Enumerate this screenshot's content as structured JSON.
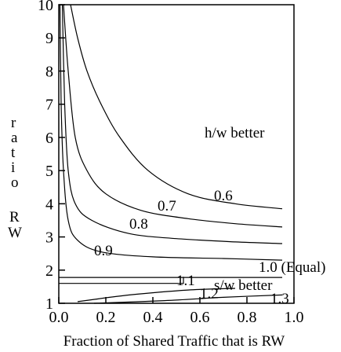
{
  "chart_data": {
    "type": "line",
    "title": "",
    "xlabel": "Fraction of Shared Traffic that is RW",
    "ylabel": "ratio RW",
    "xlim": [
      0.0,
      1.0
    ],
    "ylim": [
      1,
      10
    ],
    "xticks": [
      "0.0",
      "0.2",
      "0.4",
      "0.6",
      "0.8",
      "1.0"
    ],
    "yticks": [
      "1",
      "2",
      "3",
      "4",
      "5",
      "6",
      "7",
      "8",
      "9",
      "10"
    ],
    "grid": false,
    "series": [
      {
        "label": "0.6",
        "values": [
          [
            0.05,
            10
          ],
          [
            0.08,
            9.0
          ],
          [
            0.12,
            8.0
          ],
          [
            0.18,
            7.0
          ],
          [
            0.26,
            6.0
          ],
          [
            0.38,
            5.0
          ],
          [
            0.55,
            4.3
          ],
          [
            0.75,
            4.0
          ],
          [
            0.95,
            3.85
          ]
        ]
      },
      {
        "label": "0.7",
        "values": [
          [
            0.02,
            10
          ],
          [
            0.04,
            8.0
          ],
          [
            0.07,
            6.0
          ],
          [
            0.12,
            5.0
          ],
          [
            0.2,
            4.3
          ],
          [
            0.35,
            3.8
          ],
          [
            0.55,
            3.55
          ],
          [
            0.75,
            3.4
          ],
          [
            0.95,
            3.3
          ]
        ]
      },
      {
        "label": "0.8",
        "values": [
          [
            0.015,
            10
          ],
          [
            0.025,
            7.0
          ],
          [
            0.04,
            5.0
          ],
          [
            0.07,
            4.0
          ],
          [
            0.14,
            3.5
          ],
          [
            0.3,
            3.1
          ],
          [
            0.5,
            2.95
          ],
          [
            0.75,
            2.85
          ],
          [
            0.95,
            2.8
          ]
        ]
      },
      {
        "label": "0.9",
        "values": [
          [
            0.005,
            10
          ],
          [
            0.01,
            7.0
          ],
          [
            0.02,
            5.0
          ],
          [
            0.04,
            3.5
          ],
          [
            0.08,
            2.9
          ],
          [
            0.18,
            2.55
          ],
          [
            0.4,
            2.4
          ],
          [
            0.7,
            2.35
          ],
          [
            0.95,
            2.3
          ]
        ]
      },
      {
        "label": "1.0 (Equal)",
        "values": [
          [
            0.0,
            1.78
          ],
          [
            0.95,
            1.78
          ]
        ]
      },
      {
        "label": "1.1",
        "values": [
          [
            0.0,
            1.6
          ],
          [
            0.53,
            1.6
          ],
          [
            0.53,
            1.8
          ]
        ]
      },
      {
        "label": "1.2",
        "values": [
          [
            0.08,
            1.05
          ],
          [
            0.3,
            1.25
          ],
          [
            0.55,
            1.4
          ],
          [
            0.75,
            1.45
          ]
        ]
      },
      {
        "label": "1.3",
        "values": [
          [
            0.15,
            1.0
          ],
          [
            0.45,
            1.08
          ],
          [
            0.7,
            1.18
          ],
          [
            0.95,
            1.25
          ]
        ]
      }
    ],
    "annotations": [
      {
        "text": "h/w better",
        "x": 0.62,
        "y": 6.0
      },
      {
        "text": "s/w better",
        "x": 0.66,
        "y": 1.4
      }
    ]
  }
}
